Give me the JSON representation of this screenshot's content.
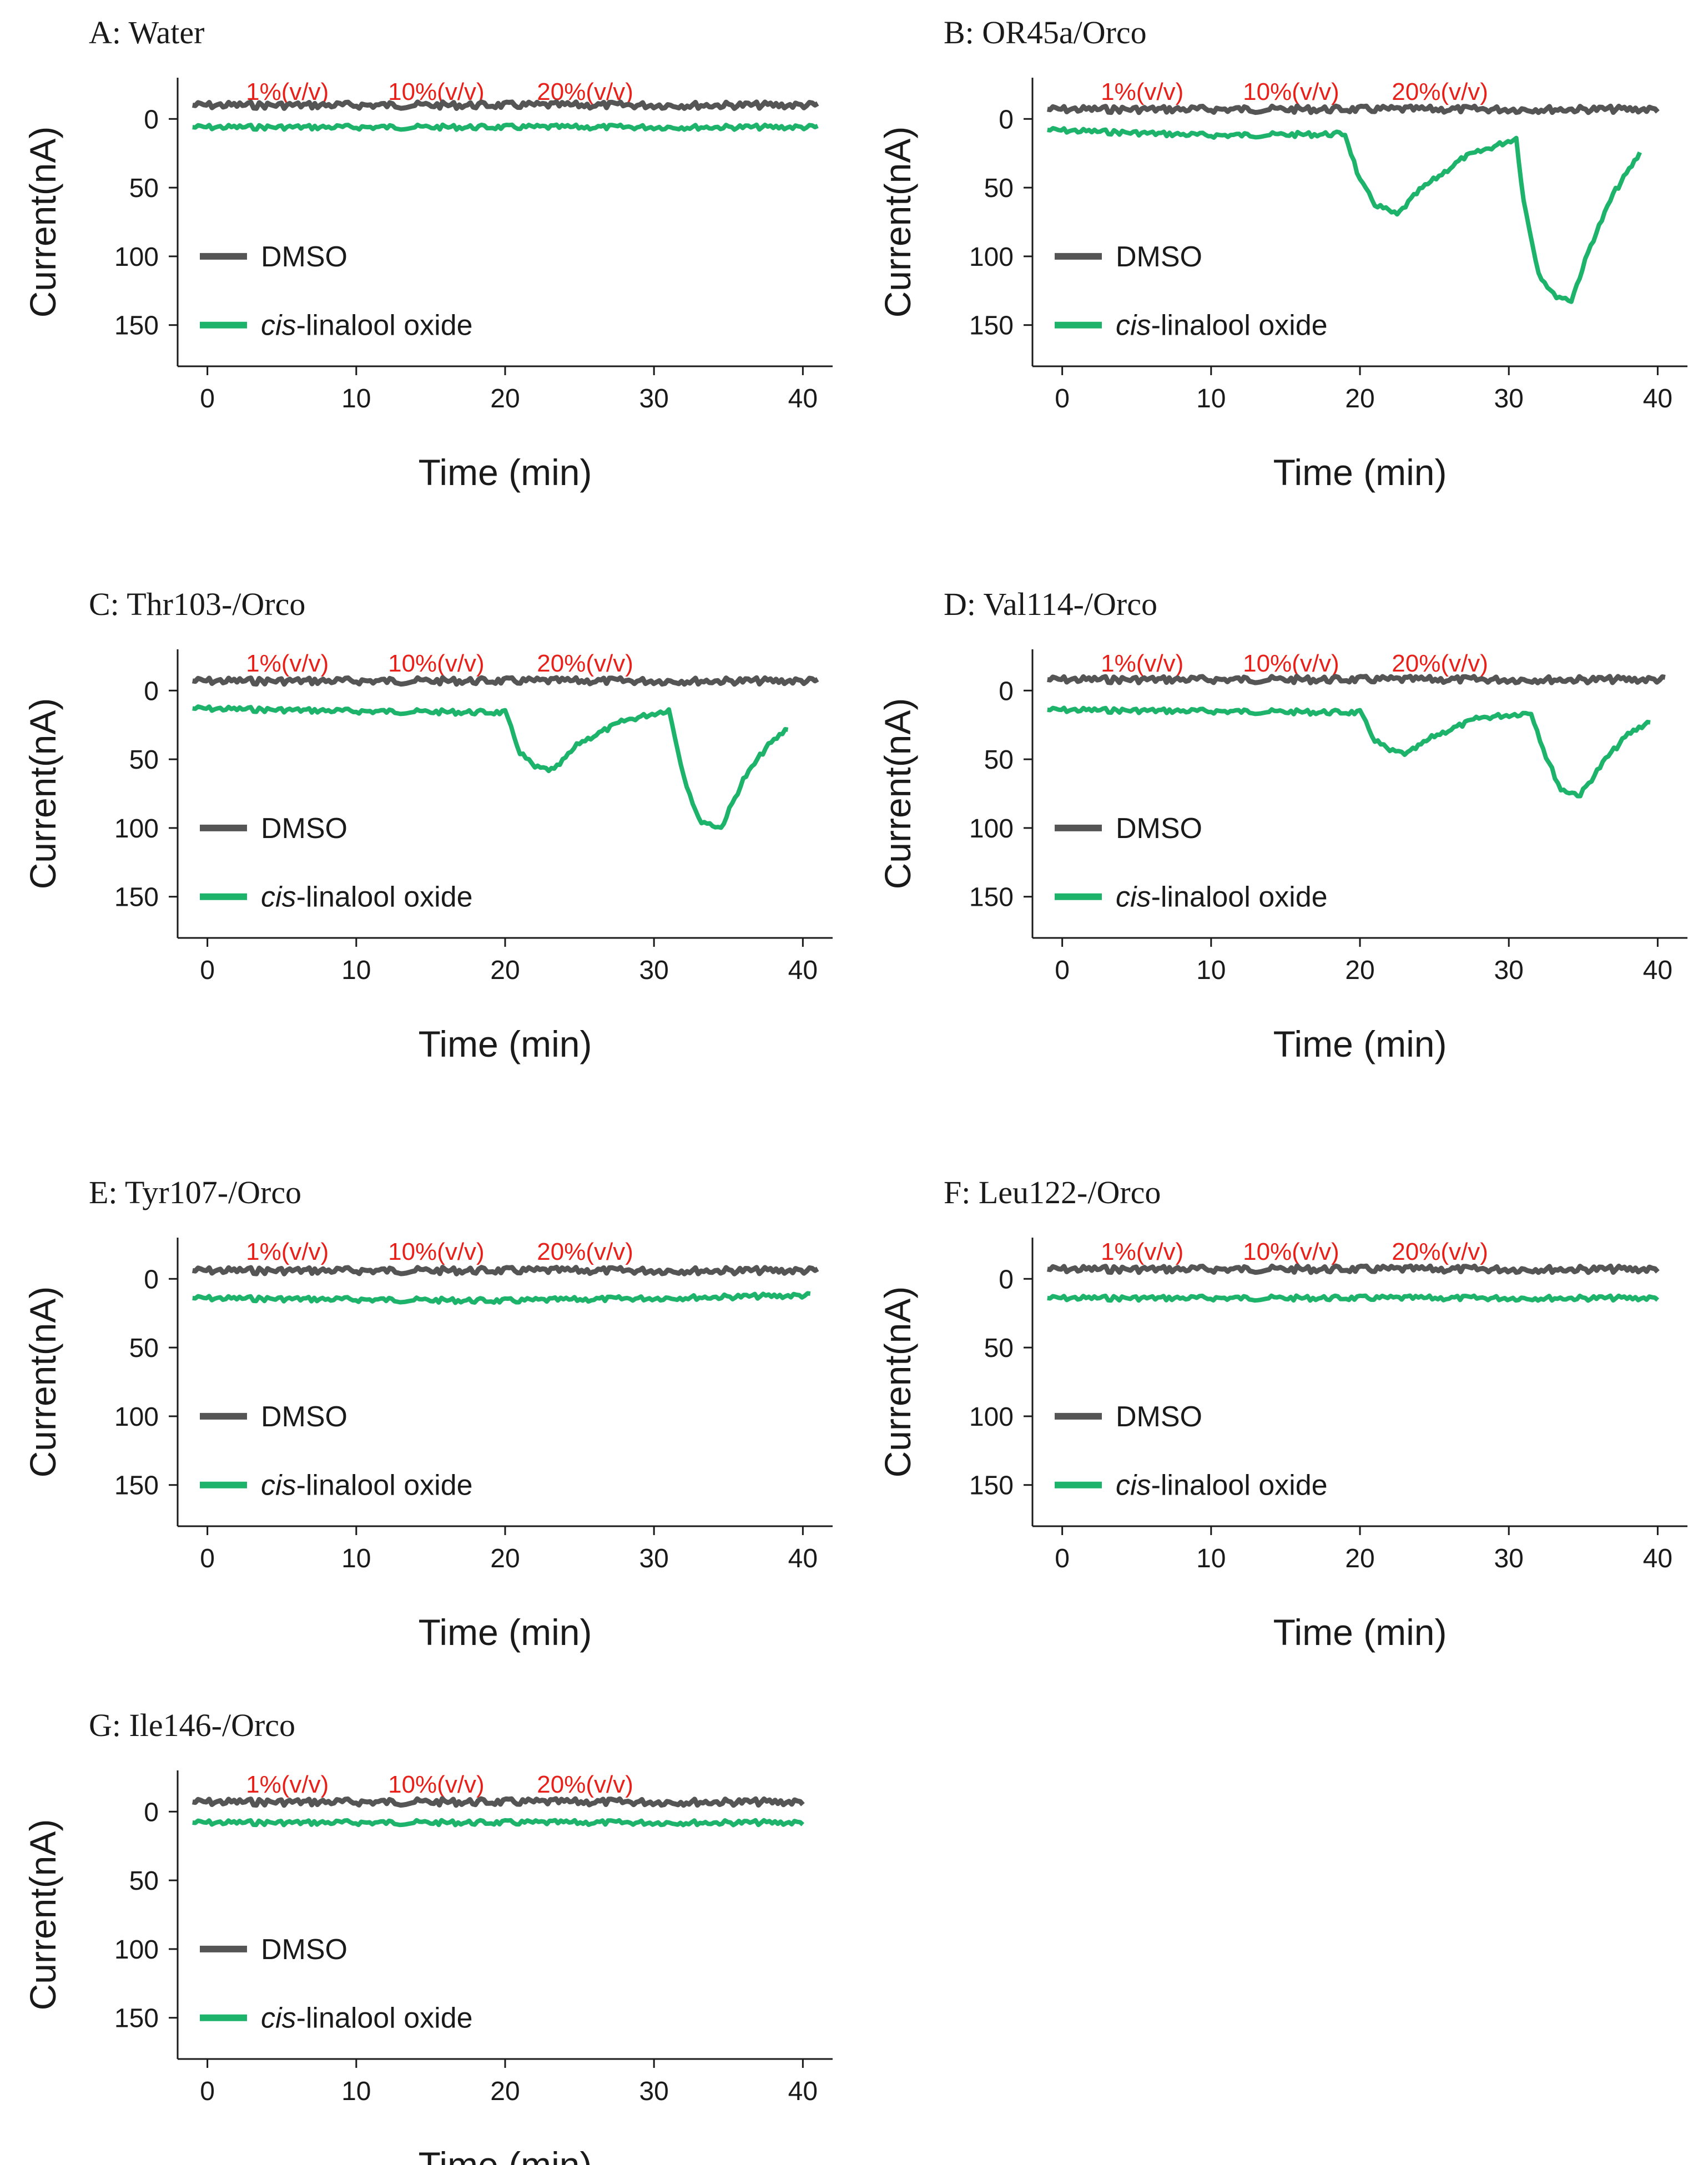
{
  "chart_data": {
    "type": "line",
    "colors": {
      "dmso": "#555555",
      "treatment": "#1db36b",
      "concentration": "#e8201a",
      "axis": "#1a1a1a"
    },
    "shared": {
      "xlabel": "Time (min)",
      "ylabel": "Current(nA)",
      "x_ticks": [
        0,
        10,
        20,
        30,
        40
      ],
      "y_ticks": [
        0,
        50,
        100,
        150
      ],
      "xlim": [
        -2,
        42
      ],
      "ylim": [
        -30,
        180
      ],
      "y_inverted": true,
      "concentration_labels": [
        "1%(v/v)",
        "10%(v/v)",
        "20%(v/v)"
      ],
      "legend": {
        "dmso_label": "DMSO",
        "treatment_italic": "cis",
        "treatment_rest": "-linalool oxide"
      }
    },
    "panels": [
      {
        "title": "A: Water",
        "series": [
          {
            "name": "DMSO",
            "x": [
              -1,
              41
            ],
            "y": [
              -10,
              -10
            ]
          },
          {
            "name": "cis-linalool oxide",
            "x": [
              -1,
              41
            ],
            "y": [
              6,
              6
            ]
          }
        ]
      },
      {
        "title": "B: OR45a/Orco",
        "series": [
          {
            "name": "DMSO",
            "x": [
              -1,
              40
            ],
            "y": [
              -7,
              -7
            ]
          },
          {
            "name": "cis-linalool oxide",
            "x": [
              -1,
              10,
              19,
              20,
              21,
              22.5,
              24,
              27,
              30.5,
              31,
              32,
              33,
              34.2,
              35.5,
              37,
              38.8
            ],
            "y": [
              8,
              12,
              11,
              45,
              62,
              70,
              52,
              28,
              14,
              60,
              112,
              128,
              132,
              92,
              55,
              25
            ]
          }
        ]
      },
      {
        "title": "C: Thr103-/Orco",
        "series": [
          {
            "name": "DMSO",
            "x": [
              -1,
              41
            ],
            "y": [
              -7,
              -7
            ]
          },
          {
            "name": "cis-linalool oxide",
            "x": [
              -1,
              10,
              20,
              21,
              22,
              23.3,
              25,
              28,
              31,
              32,
              33,
              34.5,
              36,
              37.5,
              39
            ],
            "y": [
              13,
              15,
              16,
              45,
              56,
              58,
              38,
              22,
              14,
              62,
              94,
              100,
              65,
              42,
              27
            ]
          }
        ]
      },
      {
        "title": "D: Val114-/Orco",
        "series": [
          {
            "name": "DMSO",
            "x": [
              -1,
              40.5
            ],
            "y": [
              -8,
              -8
            ]
          },
          {
            "name": "cis-linalool oxide",
            "x": [
              -1,
              10,
              20,
              21,
              22,
              23.2,
              25,
              28,
              31.5,
              32.5,
              33.5,
              34.8,
              36.5,
              38,
              39.5
            ],
            "y": [
              14,
              15,
              16,
              36,
              44,
              46,
              33,
              20,
              16,
              48,
              72,
              76,
              50,
              32,
              22
            ]
          }
        ]
      },
      {
        "title": "E: Tyr107-/Orco",
        "series": [
          {
            "name": "DMSO",
            "x": [
              -1,
              41
            ],
            "y": [
              -6,
              -6
            ]
          },
          {
            "name": "cis-linalool oxide",
            "x": [
              -1,
              20,
              40.5
            ],
            "y": [
              14,
              16,
              12
            ]
          }
        ]
      },
      {
        "title": "F: Leu122-/Orco",
        "series": [
          {
            "name": "DMSO",
            "x": [
              -1,
              40
            ],
            "y": [
              -7,
              -7
            ]
          },
          {
            "name": "cis-linalool oxide",
            "x": [
              -1,
              20,
              40
            ],
            "y": [
              14,
              14,
              14
            ]
          }
        ]
      },
      {
        "title": "G: Ile146-/Orco",
        "series": [
          {
            "name": "DMSO",
            "x": [
              -1,
              40
            ],
            "y": [
              -7,
              -7
            ]
          },
          {
            "name": "cis-linalool oxide",
            "x": [
              -1,
              20,
              40
            ],
            "y": [
              8,
              8,
              8
            ]
          }
        ]
      }
    ]
  }
}
